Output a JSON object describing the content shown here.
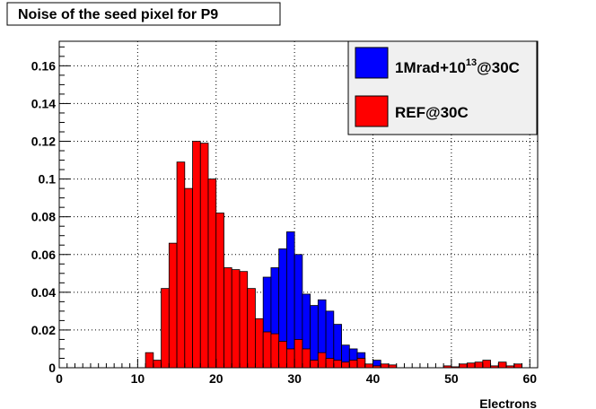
{
  "chart_data": {
    "type": "bar",
    "title": "Noise of the seed pixel for P9",
    "xlabel": "Electrons",
    "ylabel": "",
    "xlim": [
      0,
      61
    ],
    "ylim": [
      0,
      0.173
    ],
    "grid": true,
    "legend_position": "top-right",
    "x_ticks": [
      0,
      10,
      20,
      30,
      40,
      50,
      60
    ],
    "y_ticks": [
      0,
      0.02,
      0.04,
      0.06,
      0.08,
      0.1,
      0.12,
      0.14,
      0.16
    ],
    "x_tick_labels": [
      "0",
      "10",
      "20",
      "30",
      "40",
      "50",
      "60"
    ],
    "y_tick_labels": [
      "0",
      "0.02",
      "0.04",
      "0.06",
      "0.08",
      "0.1",
      "0.12",
      "0.14",
      "0.16"
    ],
    "bin_width": 1,
    "bin_start": 0,
    "series": [
      {
        "name": "1Mrad+10",
        "name_sup": "13",
        "name_suffix": "@30C",
        "color": "#0000ff",
        "values": [
          0,
          0,
          0,
          0,
          0,
          0,
          0,
          0,
          0,
          0,
          0,
          0,
          0,
          0,
          0,
          0,
          0,
          0,
          0,
          0,
          0,
          0,
          0,
          0,
          0,
          0.003,
          0.048,
          0.053,
          0.063,
          0.072,
          0.06,
          0.039,
          0.033,
          0.036,
          0.03,
          0.023,
          0.012,
          0.01,
          0.008,
          0,
          0.004,
          0,
          0,
          0,
          0,
          0,
          0,
          0,
          0,
          0,
          0,
          0,
          0,
          0,
          0,
          0,
          0,
          0,
          0,
          0,
          0
        ]
      },
      {
        "name": "REF@30C",
        "color": "#ff0000",
        "values": [
          0,
          0,
          0,
          0,
          0,
          0,
          0,
          0,
          0,
          0,
          0,
          0.008,
          0.004,
          0.042,
          0.066,
          0.109,
          0.095,
          0.12,
          0.119,
          0.1,
          0.082,
          0.053,
          0.052,
          0.051,
          0.042,
          0.026,
          0.019,
          0.018,
          0.014,
          0.01,
          0.015,
          0.01,
          0.004,
          0.008,
          0.005,
          0.004,
          0.003,
          0.004,
          0.005,
          0.002,
          0.001,
          0.002,
          0.0015,
          0,
          0,
          0,
          0,
          0,
          0,
          0.001,
          0.0005,
          0.002,
          0.0025,
          0.003,
          0.004,
          0.001,
          0.003,
          0.001,
          0.002,
          0,
          0
        ]
      }
    ]
  }
}
